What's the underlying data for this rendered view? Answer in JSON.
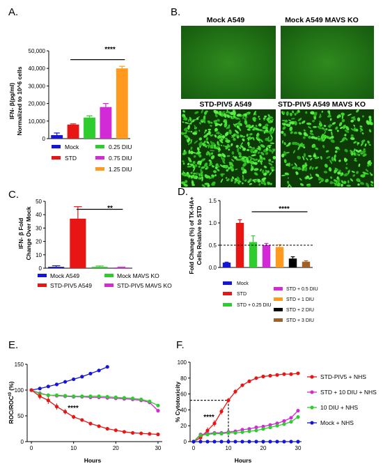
{
  "panels": {
    "A": {
      "label": "A.",
      "chart_data": {
        "type": "bar",
        "categories": [
          "Mock",
          "STD",
          "0.25 DIU",
          "0.75 DIU",
          "1.25 DIU"
        ],
        "values": [
          2000,
          8000,
          12000,
          18000,
          40000
        ],
        "errors": [
          1200,
          400,
          1000,
          2000,
          1200
        ],
        "colors": [
          "#1515d8",
          "#e81515",
          "#2ecc2e",
          "#d12ad6",
          "#ff9a1f"
        ],
        "ylabel": [
          "IFN- β(pg/ml)",
          "Normalized to 10^6 cells"
        ],
        "ylim": [
          0,
          50000
        ],
        "yticks": [
          0,
          10000,
          20000,
          30000,
          40000,
          50000
        ],
        "ytick_labels": [
          "0",
          "10,000",
          "20,000",
          "30,000",
          "40,000",
          "50,000"
        ],
        "significance": "****",
        "legend": [
          "Mock",
          "STD",
          "0.25 DIU",
          "0.75 DIU",
          "1.25 DIU"
        ]
      }
    },
    "B": {
      "label": "B.",
      "images": [
        {
          "title": "Mock A549",
          "content": "dim green field"
        },
        {
          "title": "Mock A549 MAVS KO",
          "content": "dim green field"
        },
        {
          "title": "STD-PIV5 A549",
          "content": "dense green fluorescent cells"
        },
        {
          "title": "STD-PIV5 A549 MAVS KO",
          "content": "green fluorescent cells"
        }
      ]
    },
    "C": {
      "label": "C.",
      "chart_data": {
        "type": "bar",
        "categories": [
          "Mock A549",
          "STD-PIV5 A549",
          "Mock MAVS KO",
          "STD-PIV5 MAVS KO"
        ],
        "values": [
          1,
          37,
          1,
          0.5
        ],
        "errors": [
          0.8,
          9,
          0.6,
          0.3
        ],
        "colors": [
          "#1515d8",
          "#e81515",
          "#2ecc2e",
          "#d12ad6"
        ],
        "ylabel": [
          "IFN- β Fold",
          "Change Over Mock"
        ],
        "ylim": [
          0,
          50
        ],
        "yticks": [
          0,
          10,
          20,
          30,
          40,
          50
        ],
        "ytick_labels": [
          "0",
          "10",
          "20",
          "30",
          "40",
          "50"
        ],
        "significance": "**",
        "legend": [
          "Mock A549",
          "STD-PIV5 A549",
          "Mock MAVS KO",
          "STD-PIV5 MAVS KO"
        ]
      }
    },
    "D": {
      "label": "D.",
      "chart_data": {
        "type": "bar",
        "categories": [
          "Mock",
          "STD",
          "STD + 0.25 DIU",
          "STD + 0.5 DIU",
          "STD + 1 DIU",
          "STD + 2 DIU",
          "STD + 3 DIU"
        ],
        "values": [
          0.11,
          1.0,
          0.57,
          0.5,
          0.46,
          0.2,
          0.13
        ],
        "errors": [
          0.01,
          0.07,
          0.14,
          0.04,
          0.05,
          0.04,
          0.02
        ],
        "colors": [
          "#1515d8",
          "#e81515",
          "#2ecc2e",
          "#d12ad6",
          "#ff9a1f",
          "#000000",
          "#a0602a"
        ],
        "ylabel": [
          "Fold Change (%) of TK-HA+",
          "Cells Relative to STD"
        ],
        "ylim": [
          0,
          1.5
        ],
        "yticks": [
          0,
          0.5,
          1.0,
          1.5
        ],
        "ytick_labels": [
          "0.0",
          "0.5",
          "1.0",
          "1.5"
        ],
        "reference_line": 0.5,
        "significance": "****",
        "legend": [
          "Mock",
          "STD",
          "STD + 0.25 DIU",
          "STD + 0.5 DIU",
          "STD + 1 DIU",
          "STD + 2 DIU",
          "STD + 3 DIU"
        ]
      }
    },
    "E": {
      "label": "E.",
      "chart_data": {
        "type": "line",
        "xlabel": "Hours",
        "ylabel": "ROC/ROC^t0 (%)",
        "xlim": [
          -1,
          31
        ],
        "ylim": [
          0,
          150
        ],
        "xticks": [
          0,
          10,
          20,
          30
        ],
        "yticks": [
          0,
          50,
          100,
          150
        ],
        "significance": "****",
        "series": [
          {
            "color": "#1515d8",
            "x": [
              0,
              2,
              4,
              6,
              8,
              10,
              12,
              14,
              16,
              18
            ],
            "y": [
              100,
              103,
              107,
              111,
              116,
              121,
              126,
              132,
              138,
              145
            ],
            "err": [
              2,
              2,
              2,
              2,
              2,
              2,
              2,
              2,
              2,
              2
            ]
          },
          {
            "color": "#d12ad6",
            "x": [
              0,
              2,
              4,
              6,
              8,
              10,
              12,
              14,
              16,
              18,
              20,
              22,
              24,
              26,
              28,
              30
            ],
            "y": [
              100,
              94,
              90,
              89,
              88,
              87,
              87,
              86,
              86,
              85,
              84,
              83,
              82,
              80,
              76,
              60
            ],
            "err": [
              2,
              2,
              2,
              2,
              2,
              2,
              2,
              2,
              2,
              2,
              2,
              2,
              2,
              2,
              2,
              3
            ]
          },
          {
            "color": "#2ecc2e",
            "x": [
              0,
              2,
              4,
              6,
              8,
              10,
              12,
              14,
              16,
              18,
              20,
              22,
              24,
              26,
              28,
              30
            ],
            "y": [
              100,
              93,
              90,
              90,
              89,
              88,
              88,
              88,
              88,
              87,
              86,
              85,
              84,
              82,
              78,
              70
            ],
            "err": [
              2,
              2,
              2,
              2,
              2,
              2,
              2,
              2,
              2,
              2,
              2,
              2,
              2,
              2,
              2,
              3
            ]
          },
          {
            "color": "#e81515",
            "x": [
              0,
              2,
              4,
              6,
              8,
              10,
              12,
              14,
              16,
              18,
              20,
              22,
              24,
              26,
              28,
              30
            ],
            "y": [
              100,
              88,
              80,
              68,
              58,
              48,
              42,
              35,
              30,
              25,
              22,
              19,
              17,
              16,
              15,
              14
            ],
            "err": [
              3,
              6,
              7,
              6,
              5,
              4,
              3,
              3,
              2,
              2,
              2,
              2,
              2,
              2,
              2,
              2
            ]
          }
        ]
      }
    },
    "F": {
      "label": "F.",
      "chart_data": {
        "type": "line",
        "xlabel": "Hours",
        "ylabel": "% Cytotoxicity",
        "xlim": [
          -1,
          31
        ],
        "ylim": [
          0,
          100
        ],
        "xticks": [
          0,
          10,
          20,
          30
        ],
        "yticks": [
          0,
          20,
          40,
          60,
          80,
          100
        ],
        "reference_point": [
          10,
          52
        ],
        "significance": "****",
        "series": [
          {
            "name": "STD-PIV5 + NHS",
            "color": "#e81515",
            "x": [
              0,
              2,
              4,
              6,
              8,
              10,
              12,
              14,
              16,
              18,
              20,
              22,
              24,
              26,
              28,
              30
            ],
            "y": [
              0,
              5,
              14,
              23,
              38,
              52,
              63,
              71,
              76,
              80,
              82,
              83,
              84,
              85,
              85,
              86
            ],
            "err": [
              1,
              3,
              4,
              4,
              4,
              3,
              3,
              2,
              2,
              2,
              2,
              2,
              2,
              2,
              2,
              2
            ]
          },
          {
            "name": "STD + 10 DIU + NHS",
            "color": "#d12ad6",
            "x": [
              0,
              2,
              4,
              6,
              8,
              10,
              12,
              14,
              16,
              18,
              20,
              22,
              24,
              26,
              28,
              30
            ],
            "y": [
              0,
              9,
              10,
              11,
              11,
              12,
              13,
              15,
              16,
              18,
              19,
              21,
              23,
              26,
              30,
              39
            ],
            "err": [
              1,
              2,
              2,
              2,
              2,
              2,
              2,
              2,
              2,
              2,
              2,
              2,
              2,
              2,
              2,
              2
            ]
          },
          {
            "name": "10 DIU + NHS",
            "color": "#2ecc2e",
            "x": [
              0,
              2,
              4,
              6,
              8,
              10,
              12,
              14,
              16,
              18,
              20,
              22,
              24,
              26,
              28,
              30
            ],
            "y": [
              0,
              8,
              9,
              10,
              10,
              11,
              11,
              12,
              13,
              14,
              16,
              18,
              20,
              22,
              25,
              31
            ],
            "err": [
              1,
              2,
              2,
              2,
              2,
              2,
              2,
              2,
              2,
              2,
              2,
              2,
              2,
              2,
              2,
              2
            ]
          },
          {
            "name": "Mock + NHS",
            "color": "#1515d8",
            "x": [
              0,
              2,
              4,
              6,
              8,
              10,
              12,
              14,
              16,
              18,
              20,
              22,
              24,
              26,
              28,
              30
            ],
            "y": [
              0,
              0,
              0,
              0,
              0,
              0,
              0,
              0,
              0,
              0,
              0,
              0,
              0,
              0,
              0,
              0
            ],
            "err": [
              0,
              0,
              0,
              0,
              0,
              0,
              0,
              0,
              0,
              0,
              0,
              0,
              0,
              0,
              0,
              0
            ]
          }
        ]
      }
    }
  }
}
